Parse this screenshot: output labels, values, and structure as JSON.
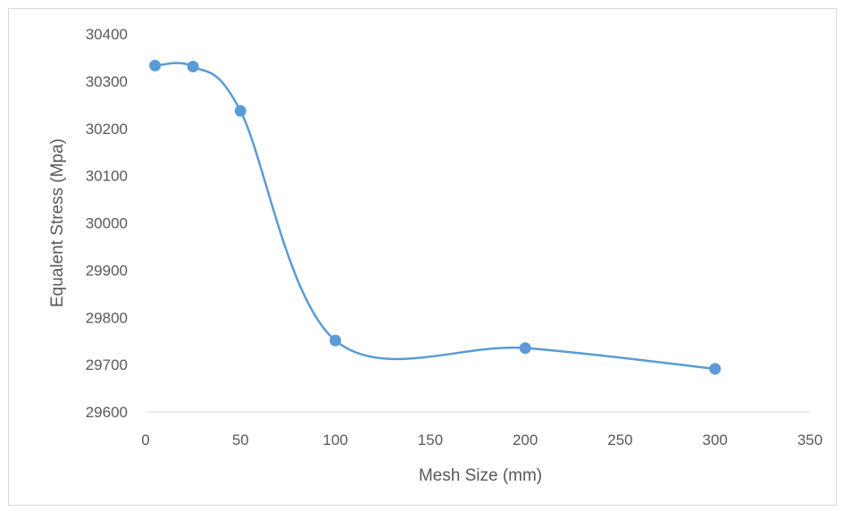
{
  "chart_data": {
    "type": "scatter",
    "title": "",
    "xlabel": "Mesh Size (mm)",
    "ylabel": "Equalent Stress (Mpa)",
    "xlim": [
      0,
      350
    ],
    "ylim": [
      29600,
      30400
    ],
    "xticks": [
      0,
      50,
      100,
      150,
      200,
      250,
      300,
      350
    ],
    "yticks": [
      29600,
      29700,
      29800,
      29900,
      30000,
      30100,
      30200,
      30300,
      30400
    ],
    "grid": false,
    "legend": "none",
    "smooth_line": true,
    "series": [
      {
        "color": "#5b9bd5",
        "x": [
          5,
          25,
          50,
          100,
          200,
          300
        ],
        "y": [
          30333,
          30331,
          30237,
          29751,
          29735,
          29691
        ]
      }
    ]
  }
}
